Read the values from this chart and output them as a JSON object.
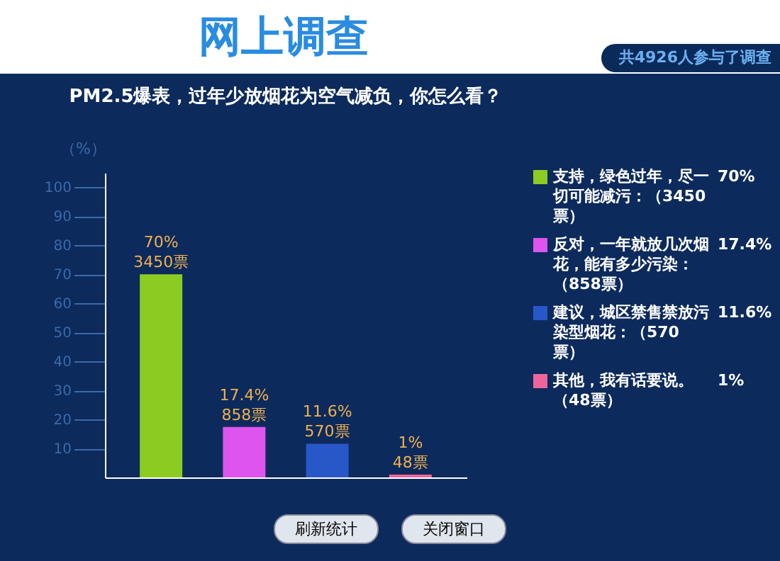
{
  "chart_data": {
    "type": "bar",
    "title": "网上调查",
    "subtitle": "PM2.5爆表，过年少放烟花为空气减负，你怎么看？",
    "ylabel": "（%）",
    "annotations": [
      "共4926人参与了调查",
      "刷新统计",
      "关闭窗口",
      "70%",
      "17.4%",
      "11.6%",
      "1%"
    ],
    "categories": [
      null,
      null,
      null,
      null
    ],
    "stacked": true,
    "series": [
      {
        "name": "支持，绿色过年，尽一切可能减污：（3450票）",
        "color": "#8ccc22",
        "values": [
          70,
          null,
          null,
          null
        ]
      },
      {
        "name": "反对，一年就放几次烟花，能有多少污染：（858票）",
        "color": "#dd55ee",
        "values": [
          null,
          17.4,
          null,
          null
        ]
      },
      {
        "name": "建议，城区禁售禁放污染型烟花：（570票）",
        "color": "#2858c8",
        "values": [
          null,
          null,
          11.6,
          null
        ]
      },
      {
        "name": "其他，我有话要说。（48票）",
        "color": "#ee6699",
        "values": [
          null,
          null,
          null,
          1
        ]
      }
    ],
    "value_labels": [
      "70% 3450票",
      "17.4% 858票",
      "11.6% 570票",
      "1% 48票"
    ],
    "ylim": [
      0,
      105
    ],
    "yticks": [
      10,
      20,
      30,
      40,
      50,
      60,
      70,
      80,
      90,
      100
    ],
    "tick_labels": "y",
    "grid": false,
    "legend": "right"
  }
}
